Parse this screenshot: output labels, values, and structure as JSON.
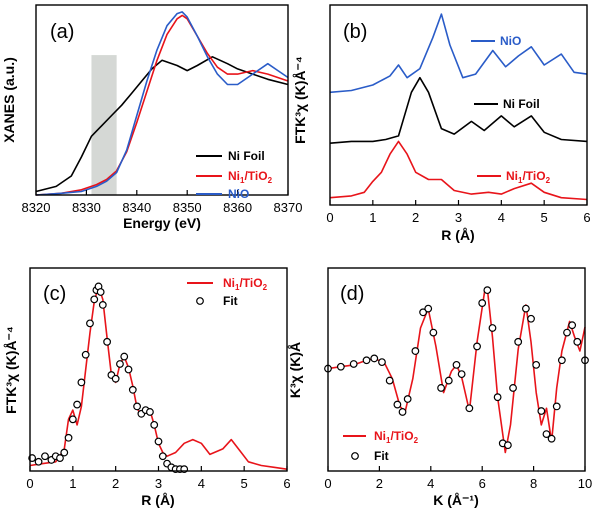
{
  "chart_data": [
    {
      "panel": "(a)",
      "type": "line",
      "xlabel": "Energy (eV)",
      "ylabel": "XANES (a.u.)",
      "xlim": [
        8320,
        8370
      ],
      "ylim": [
        0,
        1.1
      ],
      "xticks": [
        8320,
        8330,
        8340,
        8350,
        8360,
        8370
      ],
      "xticklabels": [
        "8320",
        "8330",
        "8340",
        "8350",
        "8360",
        "8370"
      ],
      "highlight_band": [
        8331,
        8336
      ],
      "legend": [
        {
          "pre": "Ni Foil",
          "sub": "",
          "post": "",
          "color": "#000000"
        },
        {
          "pre": "Ni",
          "sub": "1",
          "post": "/TiO",
          "sub2": "2",
          "color": "#e8141a"
        },
        {
          "pre": "NiO",
          "sub": "",
          "post": "",
          "color": "#2a5cc8"
        }
      ],
      "series": [
        {
          "name": "Ni Foil",
          "color": "#000000",
          "x": [
            8320,
            8324,
            8327,
            8329,
            8331,
            8333,
            8335,
            8337,
            8339,
            8341,
            8343,
            8345,
            8348,
            8350,
            8352,
            8355,
            8358,
            8360,
            8363,
            8366,
            8370
          ],
          "y": [
            0.02,
            0.05,
            0.11,
            0.22,
            0.34,
            0.4,
            0.46,
            0.52,
            0.59,
            0.66,
            0.73,
            0.78,
            0.75,
            0.72,
            0.75,
            0.8,
            0.76,
            0.73,
            0.7,
            0.67,
            0.64
          ]
        },
        {
          "name": "Ni1/TiO2",
          "color": "#e8141a",
          "x": [
            8320,
            8325,
            8329,
            8332,
            8334,
            8336,
            8338,
            8340,
            8342,
            8344,
            8346,
            8348,
            8349,
            8350,
            8352,
            8354,
            8356,
            8358,
            8360,
            8363,
            8366,
            8370
          ],
          "y": [
            0.0,
            0.01,
            0.03,
            0.06,
            0.09,
            0.14,
            0.25,
            0.42,
            0.6,
            0.78,
            0.93,
            1.02,
            1.04,
            1.02,
            0.92,
            0.82,
            0.74,
            0.7,
            0.7,
            0.72,
            0.7,
            0.66
          ]
        },
        {
          "name": "NiO",
          "color": "#2a5cc8",
          "x": [
            8320,
            8325,
            8329,
            8332,
            8334,
            8336,
            8338,
            8340,
            8342,
            8344,
            8346,
            8348,
            8349,
            8350,
            8352,
            8354,
            8356,
            8358,
            8360,
            8363,
            8366,
            8368,
            8370
          ],
          "y": [
            0.0,
            0.01,
            0.02,
            0.05,
            0.08,
            0.13,
            0.26,
            0.46,
            0.66,
            0.84,
            0.98,
            1.05,
            1.06,
            1.03,
            0.92,
            0.8,
            0.7,
            0.64,
            0.64,
            0.7,
            0.76,
            0.72,
            0.68
          ]
        }
      ]
    },
    {
      "panel": "(b)",
      "type": "line",
      "xlabel": "R (Å)",
      "ylabel": "FTK³χ (K)Å⁻⁴",
      "xlim": [
        0,
        6
      ],
      "ylim": [
        0,
        1.1
      ],
      "xticks": [
        0,
        1,
        2,
        3,
        4,
        5,
        6
      ],
      "xticklabels": [
        "0",
        "1",
        "2",
        "3",
        "4",
        "5",
        "6"
      ],
      "series": [
        {
          "name": "NiO",
          "color": "#2a5cc8",
          "x": [
            0,
            0.5,
            1.0,
            1.4,
            1.6,
            1.8,
            2.1,
            2.4,
            2.6,
            2.8,
            3.1,
            3.4,
            3.8,
            4.1,
            4.4,
            4.7,
            5.0,
            5.4,
            5.7,
            6.0
          ],
          "y": [
            0.62,
            0.63,
            0.66,
            0.71,
            0.77,
            0.7,
            0.75,
            0.92,
            1.05,
            0.88,
            0.7,
            0.72,
            0.85,
            0.76,
            0.82,
            0.87,
            0.77,
            0.83,
            0.73,
            0.72
          ]
        },
        {
          "name": "Ni Foil",
          "color": "#000000",
          "x": [
            0,
            0.5,
            1.0,
            1.3,
            1.6,
            1.9,
            2.1,
            2.3,
            2.6,
            2.9,
            3.3,
            3.6,
            4.0,
            4.3,
            4.7,
            5.0,
            5.4,
            6.0
          ],
          "y": [
            0.34,
            0.35,
            0.35,
            0.36,
            0.38,
            0.62,
            0.7,
            0.62,
            0.42,
            0.39,
            0.46,
            0.41,
            0.49,
            0.43,
            0.49,
            0.4,
            0.36,
            0.35
          ]
        },
        {
          "name": "Ni1/TiO2",
          "color": "#e8141a",
          "x": [
            0,
            0.5,
            0.8,
            1.0,
            1.2,
            1.4,
            1.6,
            1.8,
            2.0,
            2.3,
            2.6,
            2.9,
            3.3,
            3.7,
            4.0,
            4.3,
            4.7,
            5.0,
            5.4,
            6.0
          ],
          "y": [
            0.04,
            0.05,
            0.07,
            0.13,
            0.18,
            0.28,
            0.35,
            0.28,
            0.18,
            0.14,
            0.14,
            0.08,
            0.06,
            0.07,
            0.06,
            0.09,
            0.12,
            0.07,
            0.04,
            0.03
          ]
        }
      ],
      "labels": [
        {
          "pre": "NiO",
          "sub": "",
          "post": "",
          "color": "#2a5cc8"
        },
        {
          "pre": "Ni Foil",
          "sub": "",
          "post": "",
          "color": "#000000"
        },
        {
          "pre": "Ni",
          "sub": "1",
          "post": "/TiO",
          "sub2": "2",
          "color": "#e8141a"
        }
      ]
    },
    {
      "panel": "(c)",
      "type": "line+scatter",
      "xlabel": "R (Å)",
      "ylabel": "FTK³χ (K)Å⁻⁴",
      "xlim": [
        0,
        6
      ],
      "ylim": [
        0,
        1.1
      ],
      "xticks": [
        0,
        1,
        2,
        3,
        4,
        5,
        6
      ],
      "xticklabels": [
        "0",
        "1",
        "2",
        "3",
        "4",
        "5",
        "6"
      ],
      "legend": [
        {
          "pre": "Ni",
          "sub": "1",
          "post": "/TiO",
          "sub2": "2",
          "color": "#e8141a"
        },
        {
          "pre": "Fit",
          "sub": "",
          "post": "",
          "color": "#000000"
        }
      ],
      "series": [
        {
          "name": "Ni1/TiO2",
          "color": "#e8141a",
          "style": "line",
          "x": [
            0,
            0.3,
            0.6,
            0.8,
            0.9,
            1.0,
            1.1,
            1.2,
            1.4,
            1.5,
            1.6,
            1.7,
            1.8,
            1.9,
            2.0,
            2.1,
            2.2,
            2.3,
            2.4,
            2.5,
            2.6,
            2.7,
            2.8,
            2.9,
            3.0,
            3.1,
            3.2,
            3.4,
            3.6,
            3.8,
            4.0,
            4.2,
            4.5,
            4.7,
            4.9,
            5.1,
            5.4,
            5.7,
            6.0
          ],
          "y": [
            0.03,
            0.04,
            0.05,
            0.12,
            0.28,
            0.33,
            0.25,
            0.35,
            0.75,
            0.92,
            1.0,
            0.93,
            0.72,
            0.52,
            0.48,
            0.58,
            0.62,
            0.56,
            0.46,
            0.34,
            0.3,
            0.34,
            0.33,
            0.25,
            0.15,
            0.1,
            0.08,
            0.1,
            0.15,
            0.17,
            0.15,
            0.09,
            0.12,
            0.17,
            0.11,
            0.05,
            0.03,
            0.02,
            0.01
          ]
        },
        {
          "name": "Fit",
          "color": "#000000",
          "style": "circle",
          "x": [
            0.05,
            0.2,
            0.35,
            0.5,
            0.6,
            0.7,
            0.8,
            0.9,
            1.0,
            1.1,
            1.2,
            1.3,
            1.4,
            1.5,
            1.55,
            1.6,
            1.65,
            1.7,
            1.8,
            1.9,
            2.0,
            2.1,
            2.2,
            2.3,
            2.4,
            2.5,
            2.6,
            2.7,
            2.8,
            2.9,
            3.0,
            3.1,
            3.2,
            3.3,
            3.4,
            3.5,
            3.6
          ],
          "y": [
            0.07,
            0.05,
            0.08,
            0.06,
            0.08,
            0.07,
            0.1,
            0.18,
            0.28,
            0.36,
            0.48,
            0.63,
            0.8,
            0.93,
            0.98,
            1.0,
            0.97,
            0.9,
            0.7,
            0.52,
            0.5,
            0.58,
            0.62,
            0.55,
            0.44,
            0.35,
            0.31,
            0.33,
            0.32,
            0.25,
            0.16,
            0.08,
            0.04,
            0.02,
            0.01,
            0.01,
            0.01
          ]
        }
      ]
    },
    {
      "panel": "(d)",
      "type": "line+scatter",
      "xlabel": "K (Å⁻¹)",
      "ylabel": "K³χ (K)Å",
      "xlim": [
        0,
        10
      ],
      "ylim": [
        -1.1,
        1.1
      ],
      "xticks": [
        0,
        2,
        4,
        6,
        8,
        10
      ],
      "xticklabels": [
        "0",
        "2",
        "4",
        "6",
        "8",
        "10"
      ],
      "legend": [
        {
          "pre": "Ni",
          "sub": "1",
          "post": "/TiO",
          "sub2": "2",
          "color": "#e8141a"
        },
        {
          "pre": "Fit",
          "sub": "",
          "post": "",
          "color": "#000000"
        }
      ],
      "series": [
        {
          "name": "Ni1/TiO2",
          "color": "#e8141a",
          "style": "line",
          "x": [
            0,
            0.5,
            1.0,
            1.5,
            1.8,
            2.2,
            2.5,
            2.8,
            3.0,
            3.3,
            3.6,
            3.9,
            4.2,
            4.5,
            4.8,
            5.0,
            5.2,
            5.5,
            5.8,
            6.1,
            6.2,
            6.4,
            6.6,
            6.9,
            7.1,
            7.4,
            7.7,
            7.9,
            8.1,
            8.3,
            8.5,
            8.7,
            8.9,
            9.1,
            9.4,
            9.6,
            9.8,
            10.0
          ],
          "y": [
            0.01,
            0.03,
            0.05,
            0.1,
            0.12,
            0.07,
            -0.1,
            -0.4,
            -0.46,
            -0.1,
            0.45,
            0.66,
            0.25,
            -0.25,
            -0.02,
            0.05,
            -0.08,
            -0.45,
            0.3,
            0.86,
            0.88,
            0.35,
            -0.3,
            -0.9,
            -0.6,
            0.22,
            0.7,
            0.3,
            -0.25,
            -0.6,
            -0.42,
            -0.78,
            -0.2,
            0.2,
            0.52,
            0.35,
            0.2,
            0.46
          ]
        },
        {
          "name": "Fit",
          "color": "#000000",
          "style": "circle",
          "x": [
            0,
            0.5,
            1.0,
            1.5,
            1.8,
            2.1,
            2.4,
            2.7,
            2.9,
            3.1,
            3.4,
            3.7,
            3.9,
            4.1,
            4.4,
            4.7,
            5.0,
            5.2,
            5.5,
            5.8,
            6.0,
            6.2,
            6.4,
            6.6,
            6.8,
            7.0,
            7.2,
            7.4,
            7.7,
            7.9,
            8.1,
            8.3,
            8.5,
            8.7,
            8.9,
            9.1,
            9.3,
            9.5,
            9.7,
            10.0
          ],
          "y": [
            0.01,
            0.03,
            0.06,
            0.1,
            0.12,
            0.08,
            -0.12,
            -0.38,
            -0.46,
            -0.32,
            0.2,
            0.62,
            0.66,
            0.4,
            -0.2,
            -0.12,
            0.05,
            -0.05,
            -0.42,
            0.25,
            0.72,
            0.86,
            0.45,
            -0.3,
            -0.8,
            -0.82,
            -0.2,
            0.3,
            0.66,
            0.55,
            0.05,
            -0.45,
            -0.7,
            -0.75,
            -0.4,
            0.1,
            0.4,
            0.48,
            0.3,
            0.1
          ]
        }
      ]
    }
  ]
}
